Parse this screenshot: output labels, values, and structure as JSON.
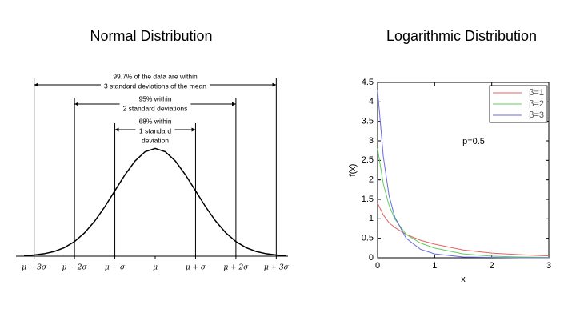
{
  "chart_data": [
    {
      "type": "normal",
      "title": "Normal Distribution",
      "x": [
        -3.25,
        -3,
        -2.75,
        -2.5,
        -2.25,
        -2,
        -1.75,
        -1.5,
        -1.25,
        -1,
        -0.75,
        -0.5,
        -0.25,
        0,
        0.25,
        0.5,
        0.75,
        1,
        1.25,
        1.5,
        1.75,
        2,
        2.25,
        2.5,
        2.75,
        3,
        3.25
      ],
      "values": [
        0.002,
        0.0044,
        0.0091,
        0.0175,
        0.0317,
        0.054,
        0.0863,
        0.1295,
        0.1826,
        0.242,
        0.3011,
        0.3521,
        0.3867,
        0.3989,
        0.3867,
        0.3521,
        0.3011,
        0.242,
        0.1826,
        0.1295,
        0.0863,
        0.054,
        0.0317,
        0.0175,
        0.0091,
        0.0044,
        0.002
      ],
      "color": "#000000",
      "xlim": [
        -3.35,
        3.35
      ],
      "ylim": [
        0,
        0.4
      ],
      "xticks": [
        {
          "value": -3,
          "label": "μ − 3σ"
        },
        {
          "value": -2,
          "label": "μ − 2σ"
        },
        {
          "value": -1,
          "label": "μ − σ"
        },
        {
          "value": 0,
          "label": "μ"
        },
        {
          "value": 1,
          "label": "μ + σ"
        },
        {
          "value": 2,
          "label": "μ + 2σ"
        },
        {
          "value": 3,
          "label": "μ + 3σ"
        }
      ],
      "annotations": [
        {
          "span": 3,
          "text": [
            "99.7% of the data are within",
            "3 standard deviations of the mean"
          ]
        },
        {
          "span": 2,
          "text": [
            "95% within",
            "2 standard deviations"
          ]
        },
        {
          "span": 1,
          "text": [
            "68% within",
            "1 standard",
            "deviation"
          ]
        }
      ]
    },
    {
      "type": "line",
      "title": "Logarithmic Distribution",
      "xlabel": "x",
      "ylabel": "f(x)",
      "annotation": "p=0.5",
      "x": [
        0,
        0.1,
        0.2,
        0.3,
        0.5,
        0.75,
        1,
        1.5,
        2,
        2.5,
        3
      ],
      "series": [
        {
          "name": "β=1",
          "color": "#e8625f",
          "values": [
            1.4,
            1.1,
            0.9,
            0.78,
            0.6,
            0.45,
            0.35,
            0.2,
            0.12,
            0.08,
            0.05
          ]
        },
        {
          "name": "β=2",
          "color": "#5ed15e",
          "values": [
            2.8,
            1.9,
            1.35,
            1.0,
            0.6,
            0.38,
            0.25,
            0.1,
            0.04,
            0.02,
            0.01
          ]
        },
        {
          "name": "β=3",
          "color": "#6b6be0",
          "values": [
            4.3,
            2.6,
            1.6,
            1.05,
            0.5,
            0.22,
            0.1,
            0.02,
            0.01,
            0,
            0
          ]
        }
      ],
      "xlim": [
        0,
        3
      ],
      "ylim": [
        0,
        4.5
      ],
      "xticks": [
        0,
        1,
        2,
        3
      ],
      "yticks": [
        0,
        0.5,
        1,
        1.5,
        2,
        2.5,
        3,
        3.5,
        4,
        4.5
      ],
      "legend": "upper right"
    }
  ]
}
